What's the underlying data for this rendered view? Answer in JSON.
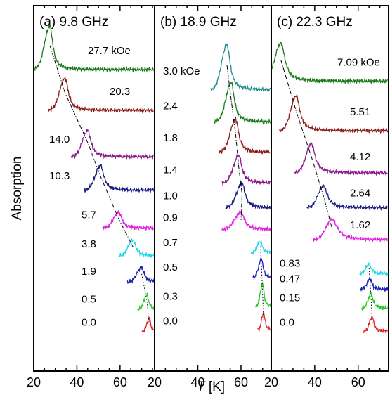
{
  "figure": {
    "ylabel": "Absorption",
    "xlabel_main": "T",
    "xlabel_unit": " [K]"
  },
  "chart_data": [
    {
      "type": "line",
      "title": "(a) 9.8 GHz",
      "xlim": [
        20,
        76
      ],
      "xticks": [
        20,
        40,
        60
      ],
      "xlabel": "T [K]",
      "ylabel": "Absorption",
      "trace_labels": [
        "27.7 kOe",
        "20.3",
        "14.0",
        "10.3",
        "5.7",
        "3.8",
        "1.9",
        "0.5",
        "0.0"
      ],
      "traces": [
        {
          "field_kOe": 27.7,
          "peak_T": 27.5,
          "baseline": 0.93,
          "peak_height": 0.15,
          "width": 1.6,
          "left_width": 3.5,
          "color": "#1a7a1a"
        },
        {
          "field_kOe": 20.3,
          "peak_T": 34.5,
          "baseline": 0.79,
          "peak_height": 0.11,
          "width": 1.8,
          "left_width": 3.5,
          "color": "#8b1a1a"
        },
        {
          "field_kOe": 14.0,
          "peak_T": 45.0,
          "baseline": 0.63,
          "peak_height": 0.09,
          "width": 1.8,
          "left_width": 3.5,
          "color": "#8b1a8b"
        },
        {
          "field_kOe": 10.3,
          "peak_T": 51.0,
          "baseline": 0.515,
          "peak_height": 0.085,
          "width": 1.8,
          "left_width": 3.5,
          "color": "#1a1a80"
        },
        {
          "field_kOe": 5.7,
          "peak_T": 59.5,
          "baseline": 0.385,
          "peak_height": 0.055,
          "width": 1.6,
          "left_width": 3.5,
          "color": "#e020e0"
        },
        {
          "field_kOe": 3.8,
          "peak_T": 66.0,
          "baseline": 0.29,
          "peak_height": 0.055,
          "width": 1.5,
          "left_width": 3.0,
          "color": "#20d8e8"
        },
        {
          "field_kOe": 1.9,
          "peak_T": 70.0,
          "baseline": 0.2,
          "peak_height": 0.05,
          "width": 1.4,
          "left_width": 3.0,
          "color": "#1a1ab8"
        },
        {
          "field_kOe": 0.5,
          "peak_T": 72.5,
          "baseline": 0.105,
          "peak_height": 0.05,
          "width": 1.0,
          "left_width": 2.0,
          "color": "#22cc22"
        },
        {
          "field_kOe": 0.0,
          "peak_T": 73.5,
          "baseline": 0.03,
          "peak_height": 0.045,
          "width": 0.8,
          "left_width": 1.5,
          "color": "#e02020"
        }
      ]
    },
    {
      "type": "line",
      "title": "(b) 18.9 GHz",
      "xlim": [
        20,
        74
      ],
      "xticks": [
        20,
        40,
        60
      ],
      "xlabel": "T [K]",
      "ylabel": "Absorption",
      "trace_labels": [
        "3.0 kOe",
        "2.4",
        "1.8",
        "1.4",
        "1.0",
        "0.9",
        "0.7",
        "0.5",
        "0.3",
        "0.0"
      ],
      "traces": [
        {
          "field_kOe": 3.0,
          "peak_T": 53.5,
          "baseline": 0.86,
          "peak_height": 0.155,
          "width": 1.8,
          "left_width": 3.5,
          "color": "#1a8a8a"
        },
        {
          "field_kOe": 2.4,
          "peak_T": 55.5,
          "baseline": 0.75,
          "peak_height": 0.135,
          "width": 1.7,
          "left_width": 3.5,
          "color": "#1a7a1a"
        },
        {
          "field_kOe": 1.8,
          "peak_T": 57.5,
          "baseline": 0.645,
          "peak_height": 0.115,
          "width": 1.7,
          "left_width": 3.5,
          "color": "#8b1a1a"
        },
        {
          "field_kOe": 1.4,
          "peak_T": 59.0,
          "baseline": 0.54,
          "peak_height": 0.095,
          "width": 1.7,
          "left_width": 3.5,
          "color": "#8b1a8b"
        },
        {
          "field_kOe": 1.0,
          "peak_T": 60.5,
          "baseline": 0.455,
          "peak_height": 0.085,
          "width": 1.7,
          "left_width": 3.5,
          "color": "#1a1a80"
        },
        {
          "field_kOe": 0.9,
          "peak_T": 60.0,
          "baseline": 0.38,
          "peak_height": 0.06,
          "width": 2.0,
          "left_width": 4.0,
          "color": "#e020e0"
        },
        {
          "field_kOe": 0.7,
          "peak_T": 69.0,
          "baseline": 0.3,
          "peak_height": 0.04,
          "width": 1.0,
          "left_width": 2.0,
          "color": "#20d8e8"
        },
        {
          "field_kOe": 0.5,
          "peak_T": 69.5,
          "baseline": 0.215,
          "peak_height": 0.065,
          "width": 0.9,
          "left_width": 1.8,
          "color": "#1a1ab8"
        },
        {
          "field_kOe": 0.3,
          "peak_T": 70.0,
          "baseline": 0.115,
          "peak_height": 0.08,
          "width": 0.8,
          "left_width": 1.5,
          "color": "#22cc22"
        },
        {
          "field_kOe": 0.0,
          "peak_T": 70.5,
          "baseline": 0.035,
          "peak_height": 0.06,
          "width": 0.7,
          "left_width": 1.3,
          "color": "#e02020"
        }
      ]
    },
    {
      "type": "line",
      "title": "(c) 22.3 GHz",
      "xlim": [
        20,
        74
      ],
      "xticks": [
        20,
        40,
        60
      ],
      "xlabel": "T [K]",
      "ylabel": "Absorption",
      "trace_labels": [
        "7.09 kOe",
        "5.51",
        "4.12",
        "2.64",
        "1.62",
        "0.83",
        "0.47",
        "0.15",
        "0.0"
      ],
      "traces": [
        {
          "field_kOe": 7.09,
          "peak_T": 24.5,
          "baseline": 0.89,
          "peak_height": 0.13,
          "width": 2.2,
          "left_width": 4.0,
          "color": "#1a7a1a"
        },
        {
          "field_kOe": 5.51,
          "peak_T": 31.5,
          "baseline": 0.72,
          "peak_height": 0.12,
          "width": 2.0,
          "left_width": 3.5,
          "color": "#8b1a1a"
        },
        {
          "field_kOe": 4.12,
          "peak_T": 38.5,
          "baseline": 0.575,
          "peak_height": 0.1,
          "width": 2.0,
          "left_width": 3.5,
          "color": "#8b1a8b"
        },
        {
          "field_kOe": 2.64,
          "peak_T": 44.0,
          "baseline": 0.455,
          "peak_height": 0.075,
          "width": 2.2,
          "left_width": 3.5,
          "color": "#1a1a80"
        },
        {
          "field_kOe": 1.62,
          "peak_T": 48.0,
          "baseline": 0.345,
          "peak_height": 0.07,
          "width": 3.0,
          "left_width": 4.0,
          "color": "#e020e0"
        },
        {
          "field_kOe": 0.83,
          "peak_T": 65.0,
          "baseline": 0.228,
          "peak_height": 0.035,
          "width": 1.2,
          "left_width": 2.0,
          "color": "#20d8e8"
        },
        {
          "field_kOe": 0.47,
          "peak_T": 65.5,
          "baseline": 0.175,
          "peak_height": 0.035,
          "width": 1.0,
          "left_width": 2.0,
          "color": "#1a1ab8"
        },
        {
          "field_kOe": 0.15,
          "peak_T": 66.0,
          "baseline": 0.11,
          "peak_height": 0.05,
          "width": 1.0,
          "left_width": 2.0,
          "color": "#22cc22"
        },
        {
          "field_kOe": 0.0,
          "peak_T": 66.5,
          "baseline": 0.03,
          "peak_height": 0.05,
          "width": 0.9,
          "left_width": 1.8,
          "color": "#e02020"
        }
      ]
    }
  ]
}
